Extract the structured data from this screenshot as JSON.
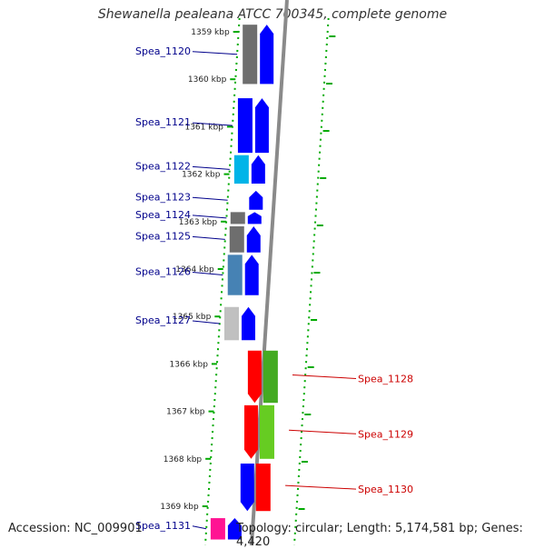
{
  "title": "Shewanella pealeana ATCC 700345, complete genome",
  "footer": {
    "accession": "Accession: NC_009901",
    "topology": "Topology: circular; Length: 5,174,581 bp; Genes: 4,420"
  },
  "ticks": [
    {
      "label": "1359 kbp",
      "kbp": 1359
    },
    {
      "label": "1360 kbp",
      "kbp": 1360
    },
    {
      "label": "1361 kbp",
      "kbp": 1361
    },
    {
      "label": "1362 kbp",
      "kbp": 1362
    },
    {
      "label": "1363 kbp",
      "kbp": 1363
    },
    {
      "label": "1364 kbp",
      "kbp": 1364
    },
    {
      "label": "1365 kbp",
      "kbp": 1365
    },
    {
      "label": "1366 kbp",
      "kbp": 1366
    },
    {
      "label": "1367 kbp",
      "kbp": 1367
    },
    {
      "label": "1368 kbp",
      "kbp": 1368
    },
    {
      "label": "1369 kbp",
      "kbp": 1369
    }
  ],
  "genes": [
    {
      "label": "Spea_1120",
      "strand": "left",
      "color": "#0000ff",
      "marker": "#6e6e6e",
      "start_kbp": 1358.85,
      "end_kbp": 1360.1
    },
    {
      "label": "Spea_1121",
      "strand": "left",
      "color": "#0000ff",
      "marker": "#0000ff",
      "start_kbp": 1360.4,
      "end_kbp": 1361.55
    },
    {
      "label": "Spea_1122",
      "strand": "left",
      "color": "#0000ff",
      "marker": "#00b4e8",
      "start_kbp": 1361.6,
      "end_kbp": 1362.2
    },
    {
      "label": "Spea_1123",
      "strand": "left",
      "color": "#0000ff",
      "marker": "",
      "start_kbp": 1362.35,
      "end_kbp": 1362.75
    },
    {
      "label": "Spea_1124",
      "strand": "left",
      "color": "#0000ff",
      "marker": "#6e6e6e",
      "start_kbp": 1362.8,
      "end_kbp": 1363.05
    },
    {
      "label": "Spea_1125",
      "strand": "left",
      "color": "#0000ff",
      "marker": "#6e6e6e",
      "start_kbp": 1363.1,
      "end_kbp": 1363.65
    },
    {
      "label": "Spea_1126",
      "strand": "left",
      "color": "#0000ff",
      "marker": "#4682b4",
      "start_kbp": 1363.7,
      "end_kbp": 1364.55
    },
    {
      "label": "Spea_1127",
      "strand": "left",
      "color": "#0000ff",
      "marker": "#c0c0c0",
      "start_kbp": 1364.8,
      "end_kbp": 1365.5
    },
    {
      "label": "Spea_1128",
      "strand": "right",
      "color": "#ff0000",
      "marker": "#44aa22",
      "start_kbp": 1365.72,
      "end_kbp": 1366.82
    },
    {
      "label": "Spea_1129",
      "strand": "right",
      "color": "#ff0000",
      "marker": "#66cc22",
      "start_kbp": 1366.87,
      "end_kbp": 1368.0
    },
    {
      "label": "Spea_1130",
      "strand": "right",
      "color": "#0000ff",
      "marker": "#ff0000",
      "start_kbp": 1368.1,
      "end_kbp": 1369.1
    },
    {
      "label": "Spea_1131",
      "strand": "left",
      "color": "#0000ff",
      "marker": "#ff1493",
      "start_kbp": 1369.25,
      "end_kbp": 1369.7
    }
  ],
  "colors": {
    "backbone": "#8a8a8a",
    "left_label": "#00008b",
    "right_label": "#cc0000",
    "dotted_track": "#00aa00"
  }
}
